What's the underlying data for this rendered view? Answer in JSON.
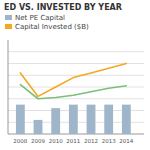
{
  "chart_data": {
    "type": "bar",
    "title": "ED VS. INVESTED BY YEAR",
    "x": [
      2008,
      2009,
      2010,
      2011,
      2012,
      2013,
      2014
    ],
    "series": [
      {
        "name": "Net PE Capital",
        "type": "bar",
        "color": "#9fb5c9",
        "values": [
          2.5,
          1.2,
          2.2,
          2.5,
          2.5,
          2.5,
          2.5
        ]
      },
      {
        "name": "Capital Invested ($B)",
        "type": "line",
        "color": "#f5a623",
        "values": [
          5.2,
          3.2,
          4.0,
          4.8,
          5.2,
          5.6,
          6.0
        ]
      },
      {
        "type": "line",
        "color": "#7bbf7a",
        "values": [
          4.2,
          3.0,
          3.1,
          3.3,
          3.6,
          3.9,
          4.1
        ]
      }
    ],
    "xlim": [
      2007.3,
      2015.0
    ],
    "xticks": [
      2008,
      2009,
      2010,
      2011,
      2012,
      2013,
      2014
    ],
    "ylim": [
      0,
      8.0
    ],
    "yticks": [
      1,
      2,
      3,
      4,
      5,
      6,
      7
    ],
    "grid": true,
    "tick_labels": "x",
    "legend": "upper left"
  }
}
